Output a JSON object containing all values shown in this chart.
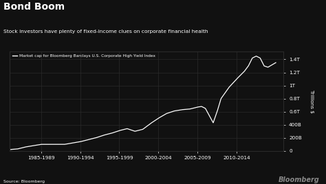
{
  "title": "Bond Boom",
  "subtitle": "Stock investors have plenty of fixed-income clues on corporate financial health",
  "legend_label": "Market cap for Bloomberg Barclays U.S. Corporate High Yield Index",
  "source": "Source: Bloomberg",
  "watermark": "Bloomberg",
  "background_color": "#111111",
  "text_color": "#ffffff",
  "grid_color": "#2a2a2a",
  "line_color": "#ffffff",
  "ylabel": "Trillions $",
  "x_tick_labels": [
    "1985-1989",
    "1990-1994",
    "1995-1999",
    "2000-2004",
    "2005-2009",
    "2010-2014"
  ],
  "x_tick_positions": [
    1987,
    1992,
    1997,
    2002,
    2007,
    2012
  ],
  "y_tick_labels": [
    "0",
    "200B",
    "400B",
    "0.6T",
    "0.8T",
    "1T",
    "1.2T",
    "1.4T"
  ],
  "y_tick_values": [
    0,
    0.2,
    0.4,
    0.6,
    0.8,
    1.0,
    1.2,
    1.4
  ],
  "ylim": [
    0,
    1.52
  ],
  "xlim": [
    1983,
    2018
  ],
  "data_x": [
    1983,
    1984,
    1985,
    1986,
    1987,
    1988,
    1989,
    1990,
    1991,
    1992,
    1993,
    1994,
    1995,
    1996,
    1997,
    1998,
    1999,
    2000,
    2001,
    2002,
    2003,
    2004,
    2005,
    2006,
    2007,
    2007.5,
    2008,
    2009,
    2009.5,
    2010,
    2011,
    2012,
    2013,
    2013.5,
    2014,
    2014.5,
    2015,
    2015.5,
    2016,
    2017
  ],
  "data_y": [
    0.02,
    0.03,
    0.06,
    0.08,
    0.1,
    0.1,
    0.1,
    0.1,
    0.12,
    0.14,
    0.17,
    0.2,
    0.24,
    0.27,
    0.31,
    0.34,
    0.3,
    0.33,
    0.42,
    0.5,
    0.57,
    0.61,
    0.63,
    0.64,
    0.67,
    0.68,
    0.65,
    0.43,
    0.6,
    0.8,
    0.97,
    1.1,
    1.22,
    1.3,
    1.42,
    1.45,
    1.42,
    1.3,
    1.28,
    1.35
  ]
}
